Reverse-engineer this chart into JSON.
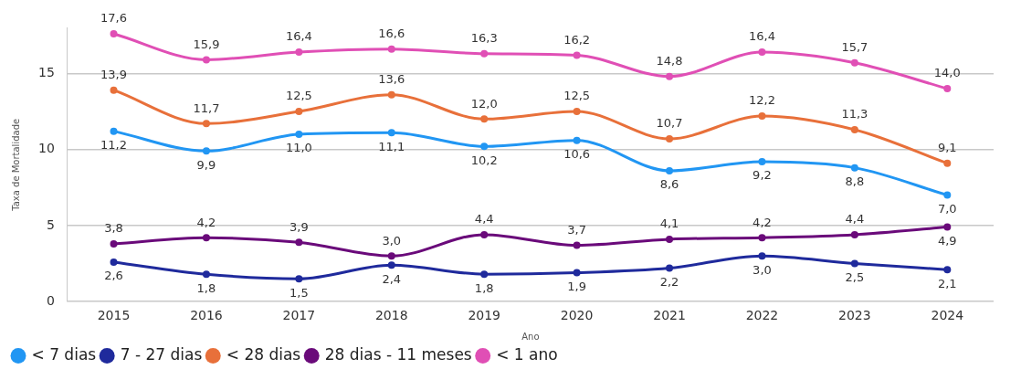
{
  "chart_data": {
    "type": "line",
    "xlabel": "Ano",
    "ylabel": "Taxa de Mortalidade",
    "categories": [
      "2015",
      "2016",
      "2017",
      "2018",
      "2019",
      "2020",
      "2021",
      "2022",
      "2023",
      "2024"
    ],
    "series": [
      {
        "name": "< 7 dias",
        "color": "#2196f3",
        "values": [
          11.2,
          9.9,
          11.0,
          11.1,
          10.2,
          10.6,
          8.6,
          9.2,
          8.8,
          7.0
        ],
        "value_labels": [
          "11,2",
          "9,9",
          "11,0",
          "11,1",
          "10,2",
          "10,6",
          "8,6",
          "9,2",
          "8,8",
          "7,0"
        ]
      },
      {
        "name": "7 - 27 dias",
        "color": "#1f2a9c",
        "values": [
          2.6,
          1.8,
          1.5,
          2.4,
          1.8,
          1.9,
          2.2,
          3.0,
          2.5,
          2.1
        ],
        "value_labels": [
          "2,6",
          "1,8",
          "1,5",
          "2,4",
          "1,8",
          "1,9",
          "2,2",
          "3,0",
          "2,5",
          "2,1"
        ]
      },
      {
        "name": "< 28 dias",
        "color": "#e8703a",
        "values": [
          13.9,
          11.7,
          12.5,
          13.6,
          12.0,
          12.5,
          10.7,
          12.2,
          11.3,
          9.1
        ],
        "value_labels": [
          "13,9",
          "11,7",
          "12,5",
          "13,6",
          "12,0",
          "12,5",
          "10,7",
          "12,2",
          "11,3",
          "9,1"
        ]
      },
      {
        "name": "28 dias - 11 meses",
        "color": "#6a0a7a",
        "values": [
          3.8,
          4.2,
          3.9,
          3.0,
          4.4,
          3.7,
          4.1,
          4.2,
          4.4,
          4.9
        ],
        "value_labels": [
          "3,8",
          "4,2",
          "3,9",
          "3,0",
          "4,4",
          "3,7",
          "4,1",
          "4,2",
          "4,4",
          "4,9"
        ]
      },
      {
        "name": "< 1 ano",
        "color": "#e04fb5",
        "values": [
          17.6,
          15.9,
          16.4,
          16.6,
          16.3,
          16.2,
          14.8,
          16.4,
          15.7,
          14.0
        ],
        "value_labels": [
          "17,6",
          "15,9",
          "16,4",
          "16,6",
          "16,3",
          "16,2",
          "14,8",
          "16,4",
          "15,7",
          "14,0"
        ]
      }
    ],
    "ylim": [
      0,
      18
    ],
    "yticks": [
      0,
      5,
      10,
      15
    ],
    "grid": "y",
    "legend": "bottom left",
    "marker": "circle",
    "line_style": "solid"
  }
}
